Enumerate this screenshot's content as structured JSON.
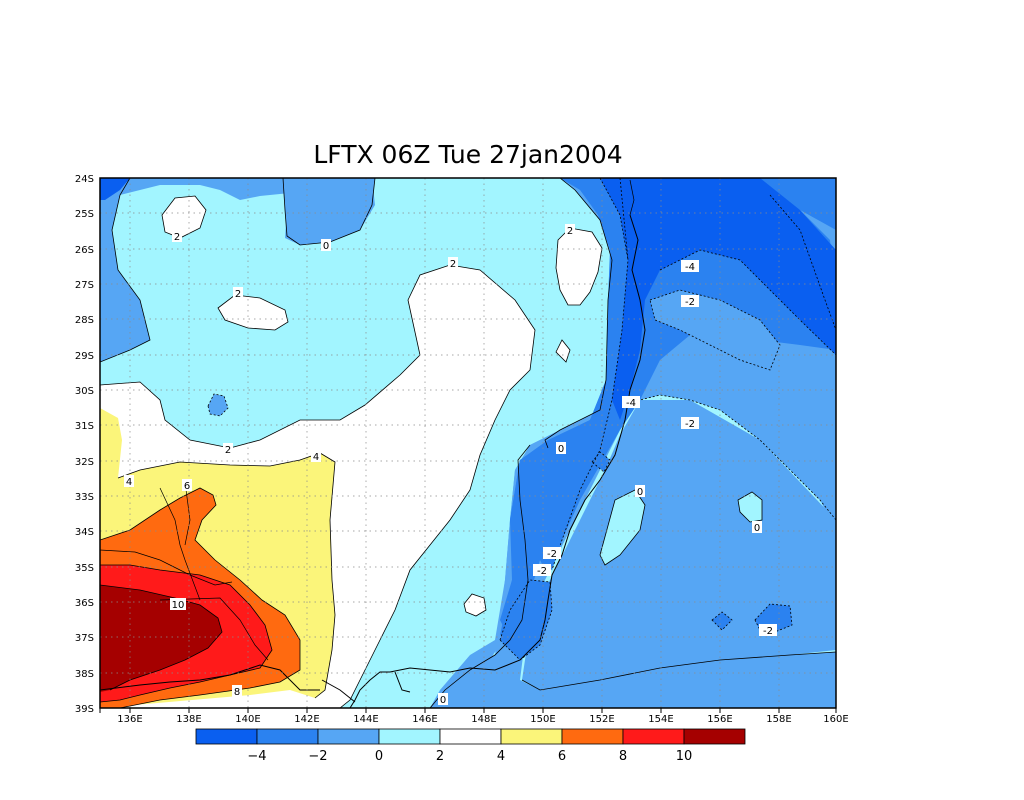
{
  "title": "LFTX 06Z Tue 27jan2004",
  "lat_ticks": [
    "24S",
    "25S",
    "26S",
    "27S",
    "28S",
    "29S",
    "30S",
    "31S",
    "32S",
    "33S",
    "34S",
    "35S",
    "36S",
    "37S",
    "38S",
    "39S"
  ],
  "lon_ticks": [
    "136E",
    "138E",
    "140E",
    "142E",
    "144E",
    "146E",
    "148E",
    "150E",
    "152E",
    "154E",
    "156E",
    "158E",
    "160E"
  ],
  "contour_labels": [
    {
      "id": "c1",
      "text": "2"
    },
    {
      "id": "c2",
      "text": "0"
    },
    {
      "id": "c3",
      "text": "2"
    },
    {
      "id": "c4",
      "text": "2"
    },
    {
      "id": "c5",
      "text": "2"
    },
    {
      "id": "c6",
      "text": "-4"
    },
    {
      "id": "c7",
      "text": "-2"
    },
    {
      "id": "c8",
      "text": "-4"
    },
    {
      "id": "c9",
      "text": "-2"
    },
    {
      "id": "c10",
      "text": "2"
    },
    {
      "id": "c11",
      "text": "4"
    },
    {
      "id": "c12",
      "text": "4"
    },
    {
      "id": "c13",
      "text": "6"
    },
    {
      "id": "c14",
      "text": "0"
    },
    {
      "id": "c15",
      "text": "0"
    },
    {
      "id": "c16",
      "text": "0"
    },
    {
      "id": "c17",
      "text": "-2"
    },
    {
      "id": "c18",
      "text": "-2"
    },
    {
      "id": "c19",
      "text": "10"
    },
    {
      "id": "c20",
      "text": "-2"
    },
    {
      "id": "c21",
      "text": "8"
    },
    {
      "id": "c22",
      "text": "0"
    }
  ],
  "colorbar": {
    "colors": [
      "#0a5ff0",
      "#2b82f0",
      "#56a6f4",
      "#a2f5ff",
      "#ffffff",
      "#fbf57a",
      "#ff6a10",
      "#ff1a1a",
      "#a50000"
    ],
    "labels": [
      "−4",
      "−2",
      "0",
      "2",
      "4",
      "6",
      "8",
      "10"
    ]
  }
}
